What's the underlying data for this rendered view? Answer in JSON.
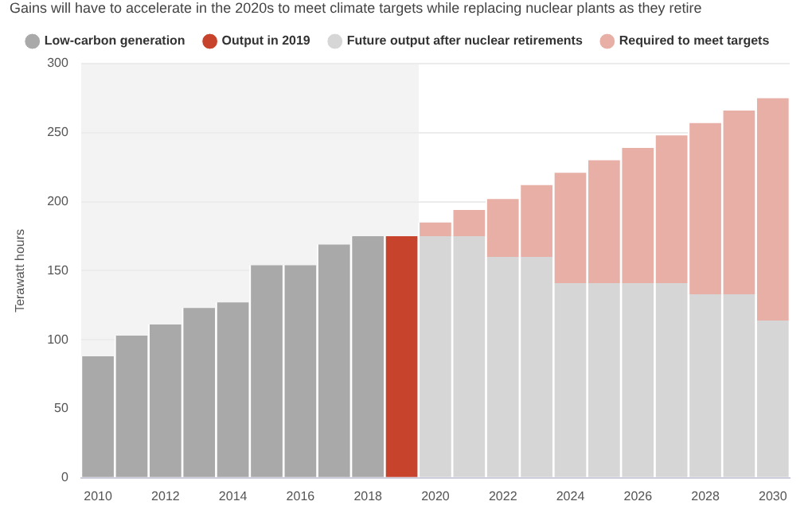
{
  "chart_data": {
    "type": "bar",
    "title": "Gains will have to accelerate in the 2020s to meet climate targets while replacing nuclear plants as they retire",
    "ylabel": "Terawatt hours",
    "categories": [
      "2010",
      null,
      "2012",
      null,
      "2014",
      null,
      "2016",
      null,
      "2018",
      null,
      "2020",
      null,
      "2022",
      null,
      "2024",
      null,
      "2026",
      null,
      "2028",
      null,
      "2030"
    ],
    "stacked": true,
    "series": [
      {
        "name": "Low-carbon generation",
        "color": "#a9a9a9",
        "values": [
          88,
          103,
          111,
          123,
          127,
          154,
          154,
          169,
          175,
          null,
          null,
          null,
          null,
          null,
          null,
          null,
          null,
          null,
          null,
          null,
          null
        ]
      },
      {
        "name": "Output in 2019",
        "color": "#c8432c",
        "values": [
          null,
          null,
          null,
          null,
          null,
          null,
          null,
          null,
          null,
          175,
          null,
          null,
          null,
          null,
          null,
          null,
          null,
          null,
          null,
          null,
          null
        ]
      },
      {
        "name": "Future output after nuclear retirements",
        "color": "#d6d6d6",
        "values": [
          null,
          null,
          null,
          null,
          null,
          null,
          null,
          null,
          null,
          null,
          175,
          175,
          160,
          160,
          141,
          141,
          141,
          141,
          133,
          133,
          114
        ]
      },
      {
        "name": "Required to meet targets",
        "color": "#e8afa6",
        "values": [
          null,
          null,
          null,
          null,
          null,
          null,
          null,
          null,
          null,
          null,
          10,
          19,
          42,
          52,
          80,
          89,
          98,
          107,
          124,
          133,
          161
        ]
      }
    ],
    "ylim": [
      0,
      300
    ],
    "yticks": [
      0,
      50,
      100,
      150,
      200,
      250,
      300
    ],
    "grid": "y",
    "legend": "top",
    "marker": "circle"
  }
}
